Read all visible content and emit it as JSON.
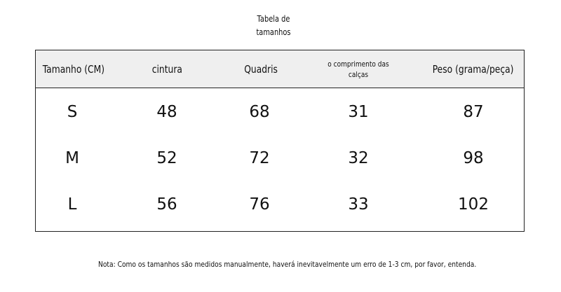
{
  "title_line1": "Tabela de",
  "title_line2": "tamanhos",
  "headers": [
    "Tamanho (CM)",
    "cintura",
    "Quadris",
    "o comprimento das calças",
    "Peso (grama/peça)"
  ],
  "rows": [
    [
      "S",
      "48",
      "68",
      "31",
      "87"
    ],
    [
      "M",
      "52",
      "72",
      "32",
      "98"
    ],
    [
      "L",
      "56",
      "76",
      "33",
      "102"
    ]
  ],
  "note": "Nota: Como os tamanhos são medidos manualmente, haverá inevitavelmente um erro de 1-3 cm, por favor, entenda."
}
